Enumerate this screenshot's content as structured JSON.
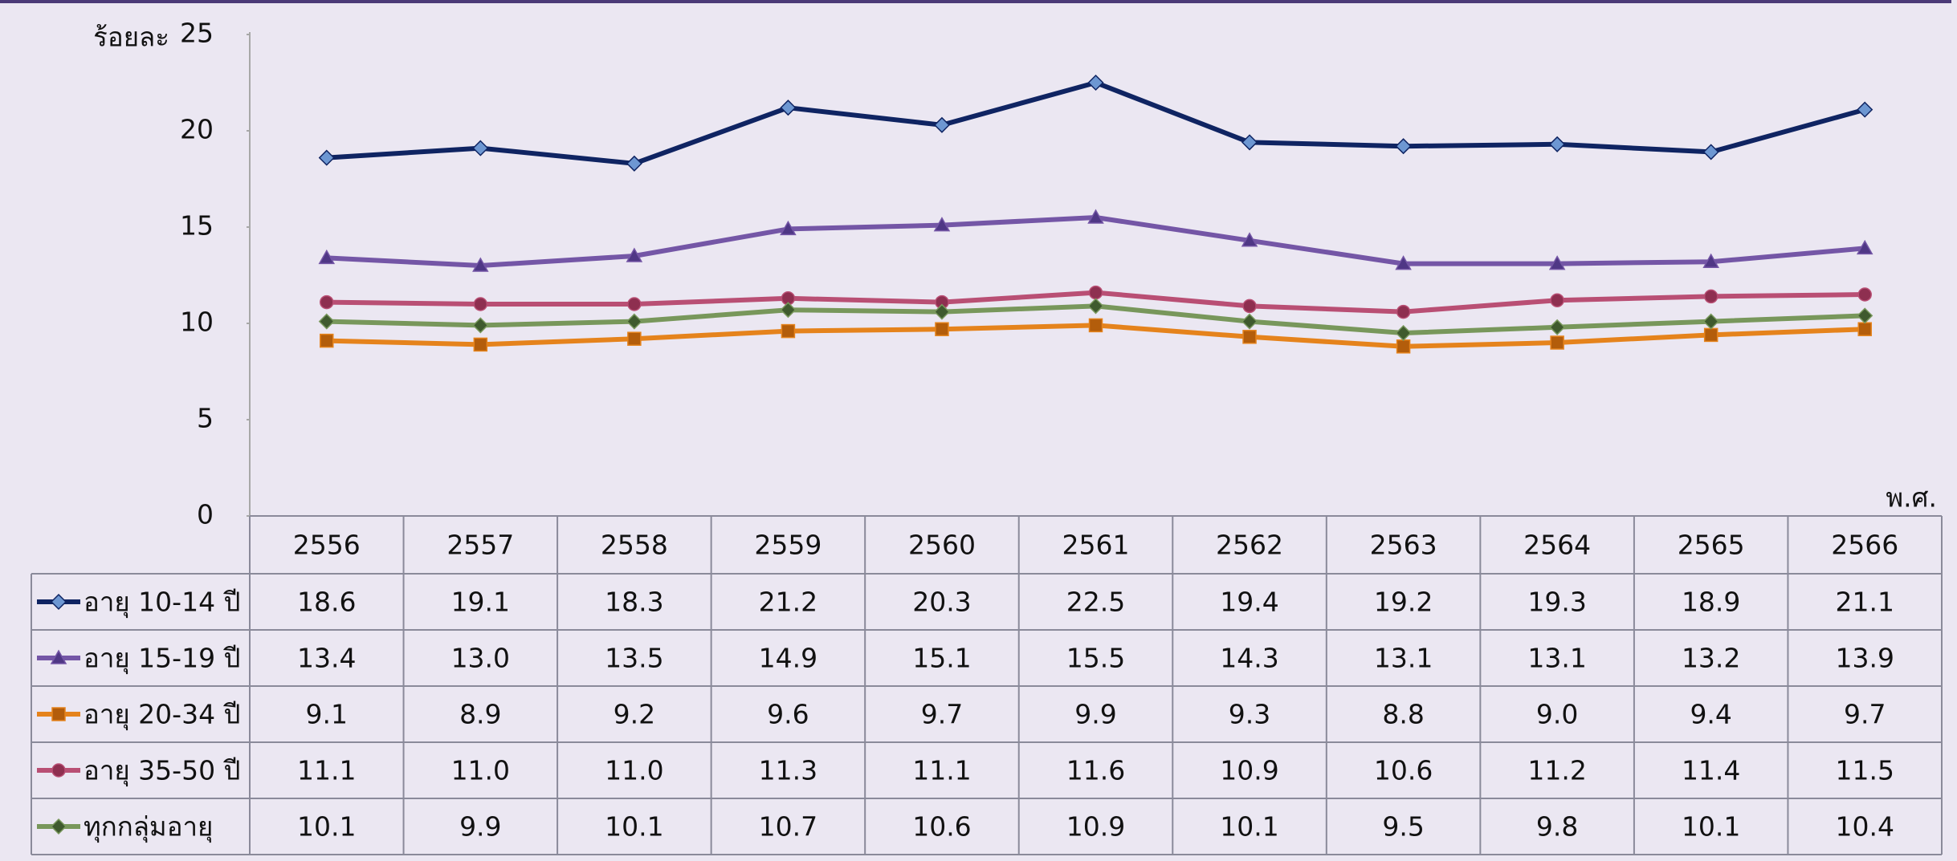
{
  "chart_data": {
    "type": "line",
    "y_label": "ร้อยละ",
    "x_label": "พ.ศ.",
    "categories": [
      "2556",
      "2557",
      "2558",
      "2559",
      "2560",
      "2561",
      "2562",
      "2563",
      "2564",
      "2565",
      "2566"
    ],
    "ylim": [
      0,
      25
    ],
    "yticks": [
      0,
      5,
      10,
      15,
      20,
      25
    ],
    "grid": false,
    "series": [
      {
        "name": "อายุ 10-14 ปี",
        "color": "#0f2462",
        "marker": "diamond",
        "marker_color": "#6d97d2",
        "values": [
          18.6,
          19.1,
          18.3,
          21.2,
          20.3,
          22.5,
          19.4,
          19.2,
          19.3,
          18.9,
          21.1
        ],
        "value_labels": [
          "18.6",
          "19.1",
          "18.3",
          "21.2",
          "20.3",
          "22.5",
          "19.4",
          "19.2",
          "19.3",
          "18.9",
          "21.1"
        ]
      },
      {
        "name": "อายุ 15-19 ปี",
        "color": "#7456a6",
        "marker": "triangle",
        "marker_color": "#4f3785",
        "values": [
          13.4,
          13.0,
          13.5,
          14.9,
          15.1,
          15.5,
          14.3,
          13.1,
          13.1,
          13.2,
          13.9
        ],
        "value_labels": [
          "13.4",
          "13.0",
          "13.5",
          "14.9",
          "15.1",
          "15.5",
          "14.3",
          "13.1",
          "13.1",
          "13.2",
          "13.9"
        ]
      },
      {
        "name": "อายุ 20-34 ปี",
        "color": "#e5831c",
        "marker": "square",
        "marker_color": "#b35d0b",
        "values": [
          9.1,
          8.9,
          9.2,
          9.6,
          9.7,
          9.9,
          9.3,
          8.8,
          9.0,
          9.4,
          9.7
        ],
        "value_labels": [
          "9.1",
          "8.9",
          "9.2",
          "9.6",
          "9.7",
          "9.9",
          "9.3",
          "8.8",
          "9.0",
          "9.4",
          "9.7"
        ]
      },
      {
        "name": "อายุ 35-50 ปี",
        "color": "#b94f74",
        "marker": "circle",
        "marker_color": "#8e2f50",
        "values": [
          11.1,
          11.0,
          11.0,
          11.3,
          11.1,
          11.6,
          10.9,
          10.6,
          11.2,
          11.4,
          11.5
        ],
        "value_labels": [
          "11.1",
          "11.0",
          "11.0",
          "11.3",
          "11.1",
          "11.6",
          "10.9",
          "10.6",
          "11.2",
          "11.4",
          "11.5"
        ]
      },
      {
        "name": "ทุกกลุ่มอายุ",
        "color": "#78975b",
        "marker": "diamond",
        "marker_color": "#3f5a2e",
        "values": [
          10.1,
          9.9,
          10.1,
          10.7,
          10.6,
          10.9,
          10.1,
          9.5,
          9.8,
          10.1,
          10.4
        ],
        "value_labels": [
          "10.1",
          "9.9",
          "10.1",
          "10.7",
          "10.6",
          "10.9",
          "10.1",
          "9.5",
          "9.8",
          "10.1",
          "10.4"
        ]
      }
    ]
  }
}
